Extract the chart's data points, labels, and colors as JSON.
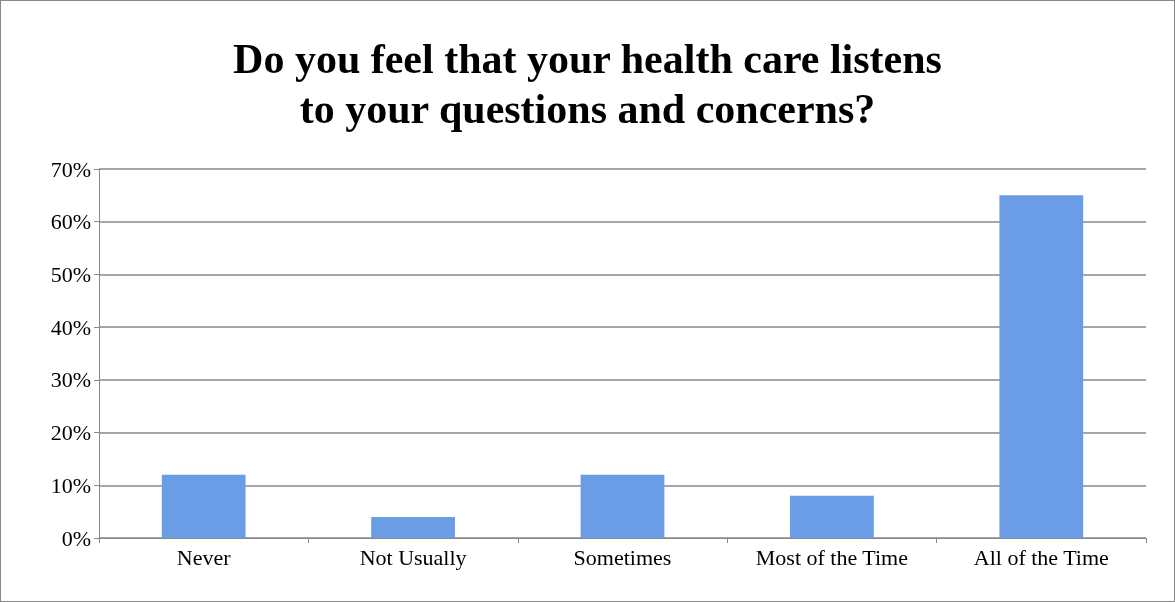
{
  "chart_data": {
    "type": "bar",
    "title": "Do you feel that your health care listens\nto your questions and concerns?",
    "categories": [
      "Never",
      "Not Usually",
      "Sometimes",
      "Most of the Time",
      "All of the Time"
    ],
    "values": [
      12,
      4,
      12,
      8,
      65
    ],
    "color": "#6b9de6",
    "ylim": [
      0,
      70
    ],
    "yticks": [
      {
        "value": 0,
        "label": "0%"
      },
      {
        "value": 10,
        "label": "10%"
      },
      {
        "value": 20,
        "label": "20%"
      },
      {
        "value": 30,
        "label": "30%"
      },
      {
        "value": 40,
        "label": "40%"
      },
      {
        "value": 50,
        "label": "50%"
      },
      {
        "value": 60,
        "label": "60%"
      },
      {
        "value": 70,
        "label": "70%"
      }
    ],
    "grid": "y"
  }
}
